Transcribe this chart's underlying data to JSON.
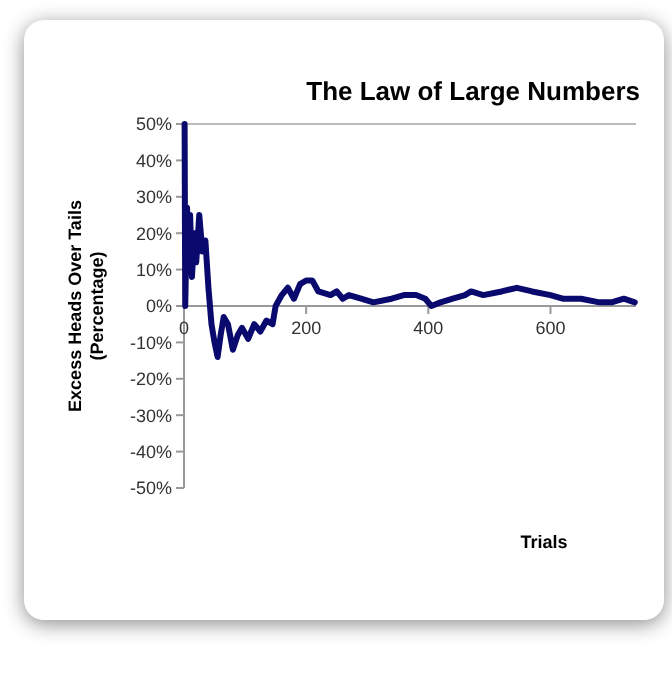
{
  "chart_data": {
    "type": "line",
    "title": "The Law of Large Numbers",
    "xlabel": "Trials",
    "ylabel": "Excess Heads Over Tails\n(Percentage)",
    "xlim": [
      0,
      740
    ],
    "xticks": [
      0,
      200,
      400,
      600
    ],
    "ylim": [
      -50,
      50
    ],
    "yticks": [
      {
        "value": -50,
        "label": "-50%"
      },
      {
        "value": -40,
        "label": "-40%"
      },
      {
        "value": -30,
        "label": "-30%"
      },
      {
        "value": -20,
        "label": "-20%"
      },
      {
        "value": -10,
        "label": "-10%"
      },
      {
        "value": 0,
        "label": "0%"
      },
      {
        "value": 10,
        "label": "10%"
      },
      {
        "value": 20,
        "label": "20%"
      },
      {
        "value": 30,
        "label": "30%"
      },
      {
        "value": 40,
        "label": "40%"
      },
      {
        "value": 50,
        "label": "50%"
      }
    ],
    "grid": false,
    "marker": "none",
    "line_style": "solid",
    "series": [
      {
        "color": "#0a0a6e",
        "x": [
          1,
          2,
          5,
          8,
          10,
          13,
          17,
          20,
          25,
          30,
          35,
          40,
          45,
          50,
          55,
          60,
          65,
          72,
          80,
          88,
          95,
          105,
          115,
          125,
          135,
          145,
          150,
          160,
          170,
          180,
          190,
          200,
          210,
          220,
          240,
          250,
          260,
          270,
          290,
          310,
          340,
          360,
          380,
          395,
          405,
          420,
          440,
          460,
          470,
          490,
          520,
          545,
          570,
          600,
          620,
          650,
          680,
          700,
          720,
          738
        ],
        "values": [
          50,
          0,
          27,
          10,
          25,
          8,
          20,
          12,
          25,
          15,
          18,
          5,
          -5,
          -10,
          -14,
          -8,
          -3,
          -5,
          -12,
          -8,
          -6,
          -9,
          -5,
          -7,
          -4,
          -5,
          0,
          3,
          5,
          2,
          6,
          7,
          7,
          4,
          3,
          4,
          2,
          3,
          2,
          1,
          2,
          3,
          3,
          2,
          0,
          1,
          2,
          3,
          4,
          3,
          4,
          5,
          4,
          3,
          2,
          2,
          1,
          1,
          2,
          1
        ]
      }
    ]
  }
}
